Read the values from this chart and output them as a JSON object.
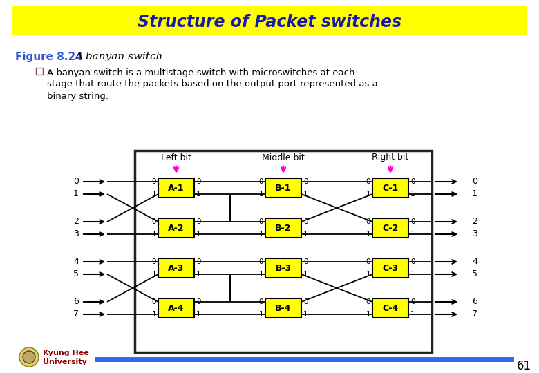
{
  "title": "Structure of Packet switches",
  "title_color": "#1a1aaa",
  "title_bg": "#FFFF00",
  "fig_label": "Figure 8.24",
  "fig_label_italic": "A banyan switch",
  "fig_label_color": "#3355cc",
  "description_bullet": "A banyan switch is a multistage switch with microswitches at each\nstage that route the packets based on the output port represented as a\nbinary string.",
  "stage_labels": [
    "Left bit",
    "Middle bit",
    "Right bit"
  ],
  "switch_labels": [
    [
      "A-1",
      "A-2",
      "A-3",
      "A-4"
    ],
    [
      "B-1",
      "B-2",
      "B-3",
      "B-4"
    ],
    [
      "C-1",
      "C-2",
      "C-3",
      "C-4"
    ]
  ],
  "input_labels": [
    "0",
    "1",
    "2",
    "3",
    "4",
    "5",
    "6",
    "7"
  ],
  "output_labels": [
    "0",
    "1",
    "2",
    "3",
    "4",
    "5",
    "6",
    "7"
  ],
  "switch_color": "#FFFF00",
  "switch_border": "#000000",
  "magenta": "#FF00CC",
  "line_color": "#000000",
  "bg_color": "#FFFFFF",
  "box_border": "#333333",
  "footer_line_color": "#3366EE",
  "university_color": "#880000",
  "page_num": "61"
}
